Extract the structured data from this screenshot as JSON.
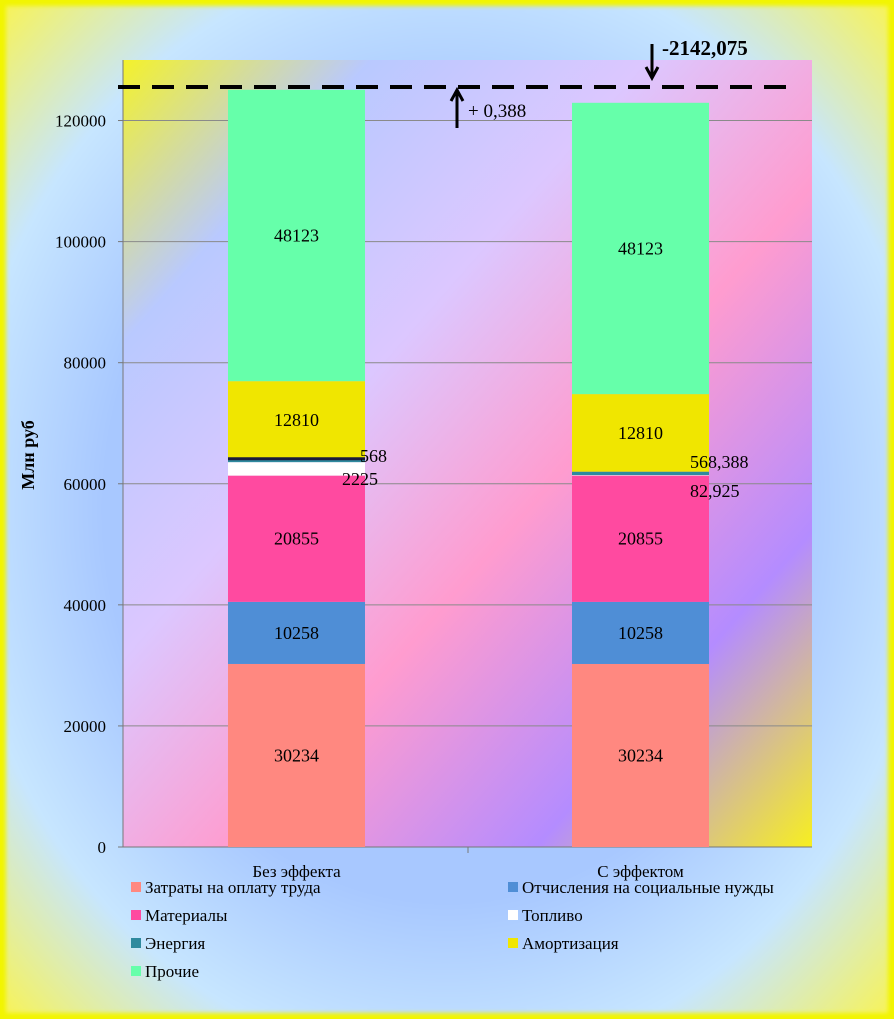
{
  "chart_data": {
    "type": "bar",
    "stacked": true,
    "ylabel": "Млн руб",
    "ylim": [
      0,
      130000
    ],
    "yticks": [
      0,
      20000,
      40000,
      60000,
      80000,
      100000,
      120000
    ],
    "categories": [
      "Без эффекта",
      "С эффектом"
    ],
    "series": [
      {
        "name": "Затраты на оплату труда",
        "color": "#ff8880",
        "values": [
          30234,
          30234
        ],
        "labels": [
          "30234",
          "30234"
        ]
      },
      {
        "name": "Отчисления на социальные нужды",
        "color": "#4f8ed6",
        "values": [
          10258,
          10258
        ],
        "labels": [
          "10258",
          "10258"
        ]
      },
      {
        "name": "Материалы",
        "color": "#ff4aa0",
        "values": [
          20855,
          20855
        ],
        "labels": [
          "20855",
          "20855"
        ]
      },
      {
        "name": "Топливо",
        "color": "#ffffff",
        "values": [
          2225,
          82.925
        ],
        "labels": [
          "2225",
          "82,925"
        ]
      },
      {
        "name": "Энергия",
        "color": "#2f8a9e",
        "values": [
          568,
          568.388
        ],
        "labels": [
          "568",
          "568,388"
        ]
      },
      {
        "name": "Амортизация",
        "color": "#f0e600",
        "values": [
          12810,
          12810
        ],
        "labels": [
          "12810",
          "12810"
        ]
      },
      {
        "name": "Прочие",
        "color": "#66ffaa",
        "values": [
          48123,
          48123
        ],
        "labels": [
          "48123",
          "48123"
        ]
      }
    ],
    "grid": true,
    "legend_position": "bottom",
    "annotations": [
      "+ 0,388",
      "-2142,075"
    ]
  }
}
